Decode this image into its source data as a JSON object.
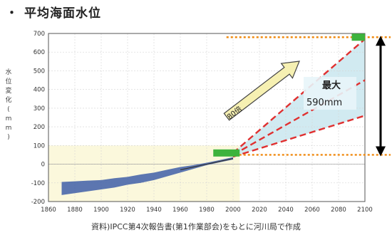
{
  "heading": {
    "bullet": "・",
    "text": "平均海面水位"
  },
  "caption": "資料)IPCC第4次報告書(第1作業部会)をもとに河川局で作成",
  "chart_data": {
    "type": "line",
    "title": "平均海面水位",
    "ylabel": "水位変化(mm)",
    "xlabel": "",
    "xlim": [
      1860,
      2100
    ],
    "ylim": [
      -200,
      700
    ],
    "x_ticks": [
      1860,
      1880,
      1900,
      1920,
      1940,
      1960,
      1980,
      2000,
      2020,
      2040,
      2060,
      2080,
      2100
    ],
    "y_ticks": [
      -200,
      -100,
      0,
      100,
      200,
      300,
      400,
      500,
      600,
      700
    ],
    "x_tick_labels": [
      "1860",
      "1880",
      "1900",
      "1920",
      "1940",
      "1960",
      "1980",
      "2000",
      "2020",
      "2040",
      "2060",
      "2080",
      "2100"
    ],
    "y_tick_labels": [
      "-200",
      "-100",
      "0",
      "100",
      "200",
      "300",
      "400",
      "500",
      "600",
      "700"
    ],
    "grid": true,
    "observed_band": {
      "name": "observed",
      "x": [
        1870,
        1880,
        1890,
        1900,
        1910,
        1920,
        1930,
        1940,
        1950,
        1960,
        1970,
        1980,
        1990,
        2000
      ],
      "lower": [
        -165,
        -155,
        -145,
        -135,
        -125,
        -110,
        -100,
        -85,
        -65,
        -45,
        -25,
        -5,
        10,
        25
      ],
      "upper": [
        -95,
        -92,
        -88,
        -85,
        -75,
        -68,
        -55,
        -45,
        -30,
        -15,
        -5,
        8,
        22,
        38
      ]
    },
    "observed_line": {
      "x": [
        1960,
        1970,
        1980,
        1990,
        2000
      ],
      "y": [
        -30,
        -15,
        0,
        15,
        30
      ]
    },
    "projection_lines": [
      {
        "x": [
          2000,
          2100
        ],
        "y": [
          60,
          670
        ]
      },
      {
        "x": [
          2000,
          2100
        ],
        "y": [
          50,
          450
        ]
      },
      {
        "x": [
          2000,
          2100
        ],
        "y": [
          40,
          260
        ]
      }
    ],
    "reference_lines": [
      {
        "y": 50
      },
      {
        "y": 680
      }
    ],
    "green_bars": [
      {
        "x": [
          1985,
          2005
        ],
        "y": 60
      },
      {
        "x": [
          2090,
          2100
        ],
        "y": 680
      }
    ],
    "annotations": {
      "arrow_label": "80倍",
      "range_label": "最大",
      "range_value": "590mm"
    }
  },
  "colors": {
    "observed": "#3f5fa8",
    "projection": "#e03030",
    "reference": "#f08a10",
    "marker": "#3db33d",
    "shade": "#c9e6ef",
    "history_bg": "#fbf8dc",
    "arrow": "#f6f0b2"
  }
}
